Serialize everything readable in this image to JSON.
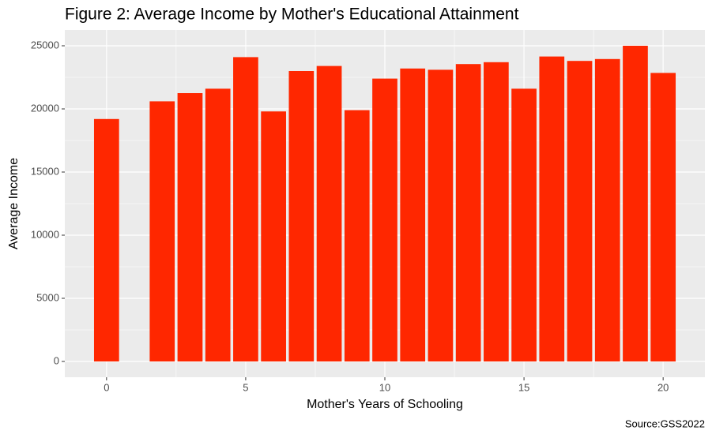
{
  "chart_data": {
    "type": "bar",
    "title": "Figure 2: Average Income by Mother's Educational Attainment",
    "x_label": "Mother's Years of Schooling",
    "y_label": "Average Income",
    "caption": "Source:GSS2022",
    "x": [
      0,
      2,
      3,
      4,
      5,
      6,
      7,
      8,
      9,
      10,
      11,
      12,
      13,
      14,
      15,
      16,
      17,
      18,
      19,
      20
    ],
    "values": [
      19200,
      20600,
      21250,
      21600,
      24100,
      19800,
      23000,
      23400,
      19900,
      22400,
      23200,
      23100,
      23550,
      23700,
      21600,
      24150,
      23800,
      23950,
      25000,
      22850
    ],
    "color": "#ff2700",
    "xlim": [
      -1.5,
      21.5
    ],
    "xticks": [
      0,
      5,
      10,
      15,
      20
    ],
    "ylim": [
      -1250,
      26250
    ],
    "yticks": [
      0,
      5000,
      10000,
      15000,
      20000,
      25000
    ],
    "grid": true
  }
}
